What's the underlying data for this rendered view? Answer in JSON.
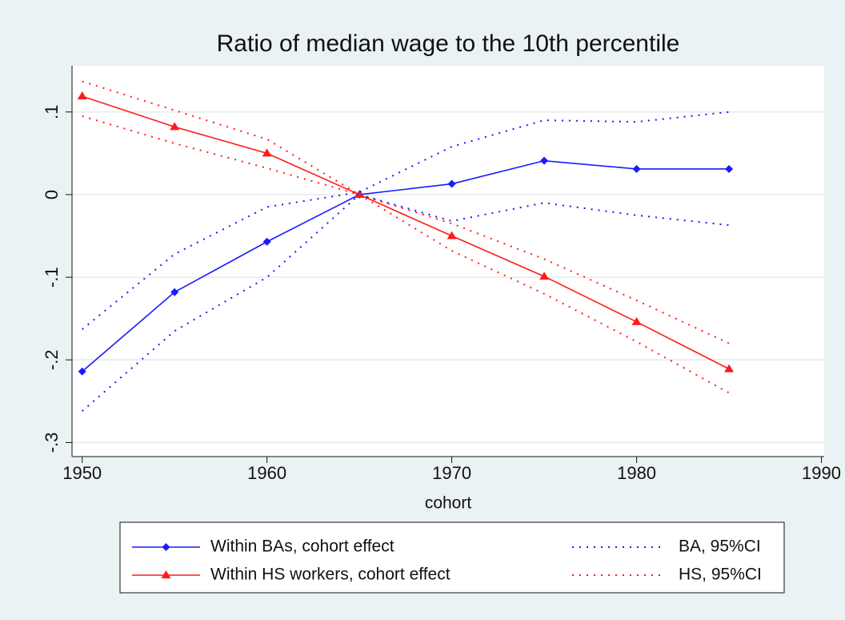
{
  "chart_data": {
    "type": "line",
    "title": "Ratio of median wage to the 10th percentile",
    "x_label": "cohort",
    "x": [
      1950,
      1955,
      1960,
      1965,
      1970,
      1975,
      1980,
      1985
    ],
    "xlim": [
      1949.45,
      1990.15
    ],
    "xticks": [
      1950,
      1960,
      1970,
      1980,
      1990
    ],
    "ylim": [
      -0.317,
      0.156
    ],
    "yticks": [
      {
        "value": 0.1,
        "label": ".1"
      },
      0,
      {
        "value": -0.1,
        "label": "-.1"
      },
      {
        "value": -0.2,
        "label": "-.2"
      },
      {
        "value": -0.3,
        "label": "-.3"
      }
    ],
    "grid": true,
    "series": [
      {
        "name": "Within BAs, cohort effect",
        "color": "#1a1aff",
        "style": "solid",
        "marker": "diamond",
        "values": [
          -0.214,
          -0.118,
          -0.057,
          0,
          0.013,
          0.041,
          0.031,
          0.031
        ]
      },
      {
        "name": "Within HS workers, cohort effect",
        "color": "#ff1a1a",
        "style": "solid",
        "marker": "triangle",
        "values": [
          0.119,
          0.082,
          0.05,
          0,
          -0.05,
          -0.099,
          -0.154,
          -0.211
        ]
      },
      {
        "name": "BA, 95%CI",
        "color": "#1a1aff",
        "style": "dotted",
        "upper": [
          -0.163,
          -0.072,
          -0.015,
          0.003,
          0.058,
          0.09,
          0.088,
          0.1
        ],
        "lower": [
          -0.262,
          -0.165,
          -0.1,
          0,
          -0.032,
          -0.01,
          -0.025,
          -0.037
        ]
      },
      {
        "name": "HS, 95%CI",
        "color": "#ff1a1a",
        "style": "dotted",
        "upper": [
          0.137,
          0.102,
          0.067,
          0,
          -0.035,
          -0.078,
          -0.128,
          -0.18
        ],
        "lower": [
          0.095,
          0.062,
          0.032,
          0,
          -0.068,
          -0.12,
          -0.178,
          -0.24
        ]
      }
    ]
  }
}
